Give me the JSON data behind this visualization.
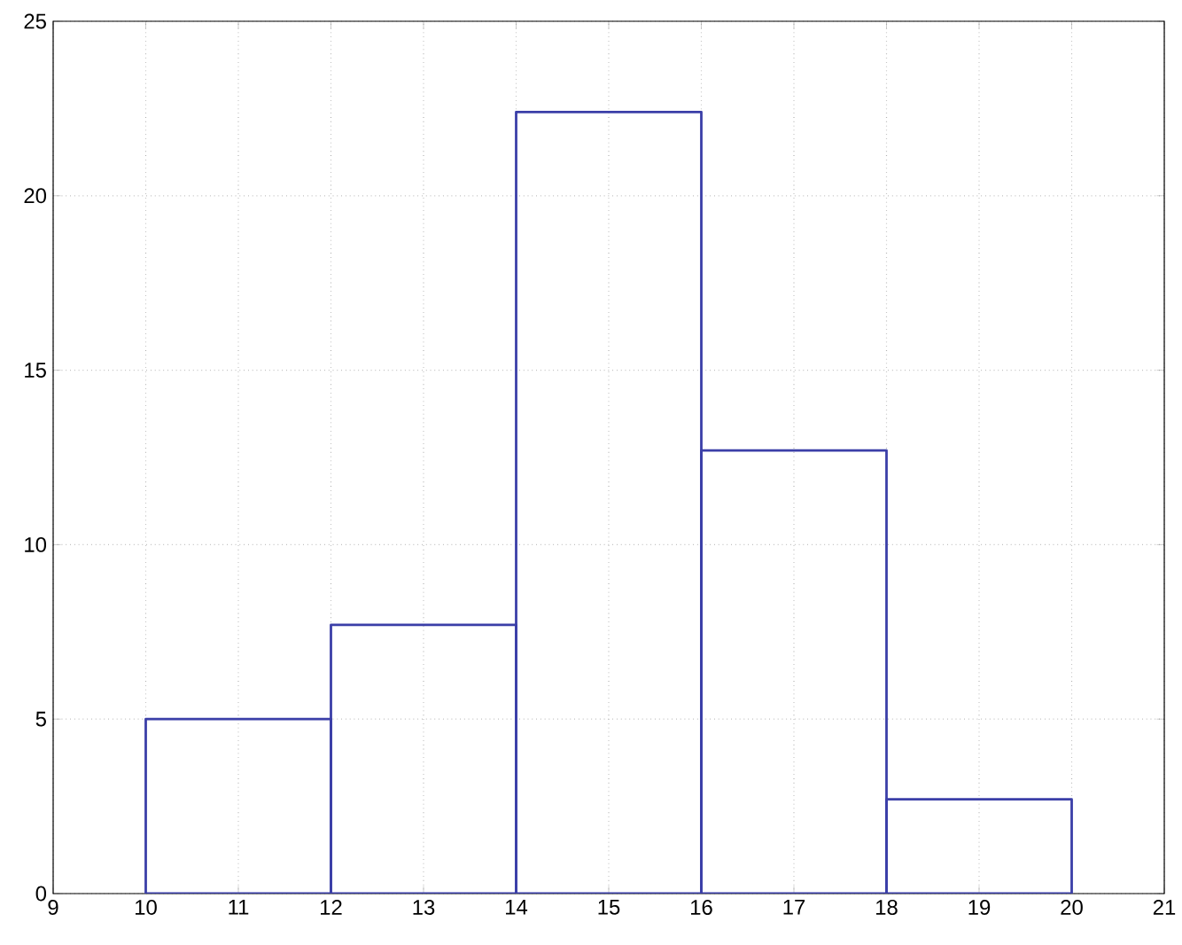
{
  "chart_data": {
    "type": "histogram",
    "bins": [
      10,
      12,
      14,
      16,
      18,
      20
    ],
    "values": [
      5,
      7.7,
      22.4,
      12.7,
      2.7
    ],
    "color": "#3b3fa8",
    "xlim": [
      9,
      21
    ],
    "ylim": [
      0,
      25
    ],
    "xticks": [
      9,
      10,
      11,
      12,
      13,
      14,
      15,
      16,
      17,
      18,
      19,
      20,
      21
    ],
    "yticks": [
      0,
      5,
      10,
      15,
      20,
      25
    ],
    "grid": true
  }
}
